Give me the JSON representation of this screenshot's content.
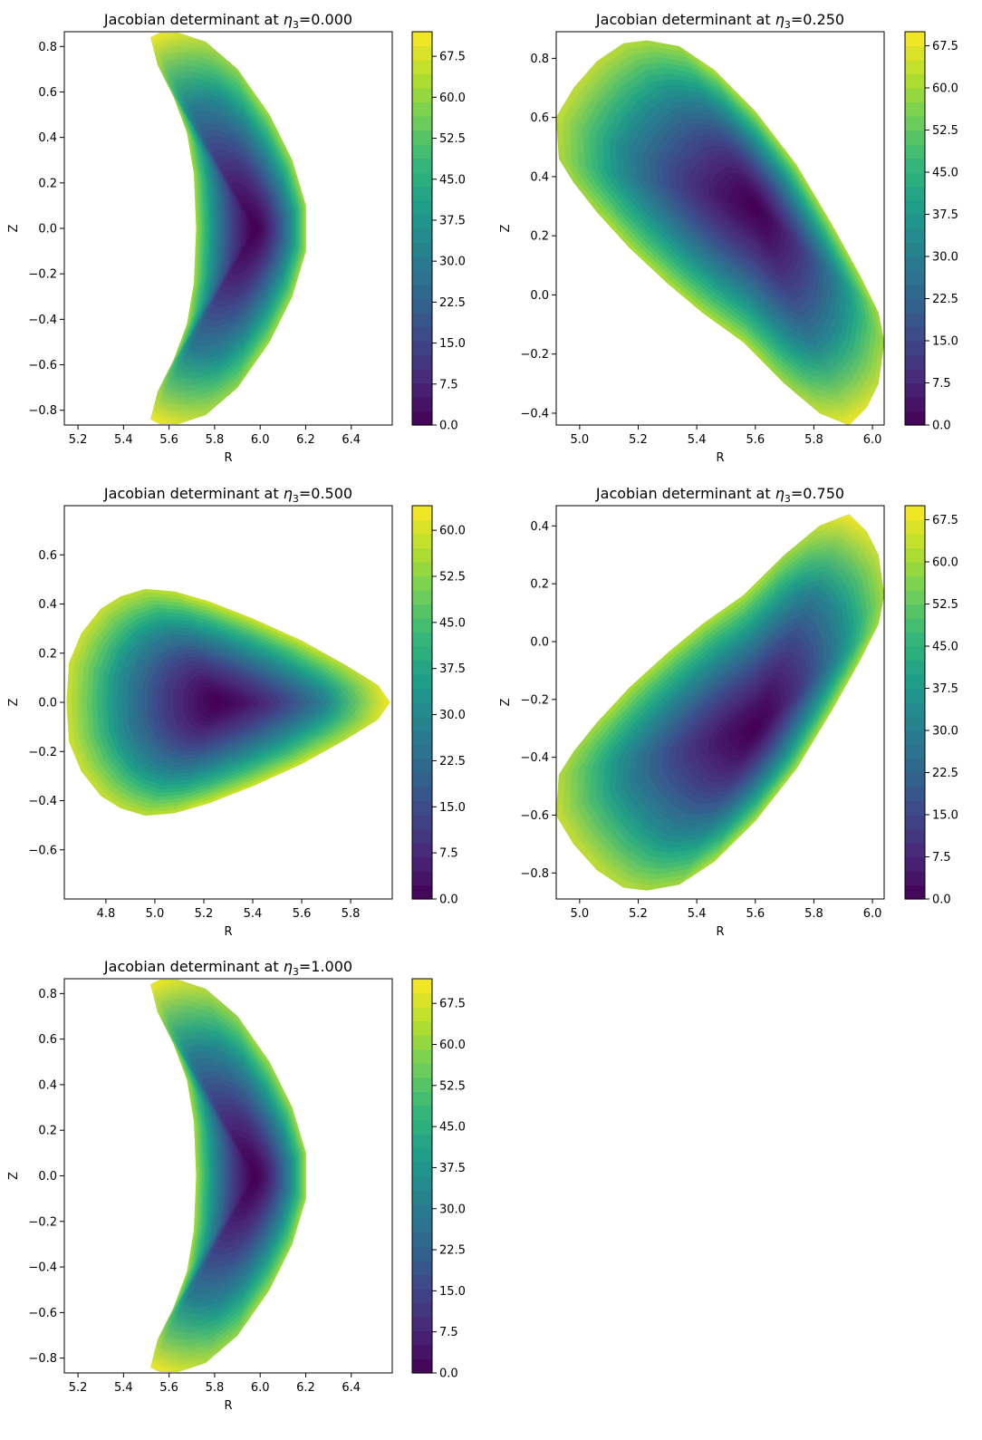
{
  "figure": {
    "colormap": "viridis",
    "panel_background": "#ffffff",
    "axes_color": "#000000"
  },
  "chart_data": [
    {
      "type": "heatmap",
      "subtype": "filled-contour",
      "title_prefix": "Jacobian determinant at ",
      "title_symbol": "η",
      "title_subscript": "3",
      "title_suffix": "=0.000",
      "xlabel": "R",
      "ylabel": "Z",
      "xlim": [
        5.14,
        6.58
      ],
      "ylim": [
        -0.865,
        0.865
      ],
      "xticks": [
        "5.2",
        "5.4",
        "5.6",
        "5.8",
        "6.0",
        "6.2",
        "6.4"
      ],
      "yticks": [
        "0.8",
        "0.6",
        "0.4",
        "0.2",
        "0.0",
        "−0.2",
        "−0.4",
        "−0.6",
        "−0.8"
      ],
      "colorbar": {
        "min": 0,
        "max": 72,
        "ticks": [
          "0.0",
          "7.5",
          "15.0",
          "22.5",
          "30.0",
          "37.5",
          "45.0",
          "52.5",
          "60.0",
          "67.5"
        ]
      },
      "field": {
        "boundary_RZ": [
          [
            5.52,
            0.84
          ],
          [
            5.56,
            0.86
          ],
          [
            5.64,
            0.86
          ],
          [
            5.76,
            0.82
          ],
          [
            5.9,
            0.7
          ],
          [
            6.04,
            0.5
          ],
          [
            6.14,
            0.3
          ],
          [
            6.2,
            0.1
          ],
          [
            6.2,
            -0.1
          ],
          [
            6.14,
            -0.3
          ],
          [
            6.04,
            -0.5
          ],
          [
            5.9,
            -0.7
          ],
          [
            5.76,
            -0.82
          ],
          [
            5.64,
            -0.86
          ],
          [
            5.56,
            -0.86
          ],
          [
            5.52,
            -0.84
          ],
          [
            5.55,
            -0.72
          ],
          [
            5.62,
            -0.58
          ],
          [
            5.68,
            -0.42
          ],
          [
            5.71,
            -0.24
          ],
          [
            5.72,
            0.0
          ],
          [
            5.71,
            0.24
          ],
          [
            5.68,
            0.42
          ],
          [
            5.62,
            0.58
          ],
          [
            5.55,
            0.72
          ]
        ],
        "magnetic_axis_RZ": [
          5.98,
          0.0
        ],
        "axis_value": 0,
        "edge_value_range": [
          45,
          72
        ]
      }
    },
    {
      "type": "heatmap",
      "subtype": "filled-contour",
      "title_prefix": "Jacobian determinant at ",
      "title_symbol": "η",
      "title_subscript": "3",
      "title_suffix": "=0.250",
      "xlabel": "R",
      "ylabel": "Z",
      "xlim": [
        4.92,
        6.04
      ],
      "ylim": [
        -0.44,
        0.89
      ],
      "xticks": [
        "5.0",
        "5.2",
        "5.4",
        "5.6",
        "5.8",
        "6.0"
      ],
      "yticks": [
        "0.8",
        "0.6",
        "0.4",
        "0.2",
        "0.0",
        "−0.2",
        "−0.4"
      ],
      "colorbar": {
        "min": 0,
        "max": 70,
        "ticks": [
          "0.0",
          "7.5",
          "15.0",
          "22.5",
          "30.0",
          "37.5",
          "45.0",
          "52.5",
          "60.0",
          "67.5"
        ]
      },
      "field": {
        "boundary_RZ": [
          [
            4.92,
            0.6
          ],
          [
            4.98,
            0.7
          ],
          [
            5.06,
            0.79
          ],
          [
            5.15,
            0.85
          ],
          [
            5.23,
            0.86
          ],
          [
            5.34,
            0.84
          ],
          [
            5.46,
            0.76
          ],
          [
            5.6,
            0.62
          ],
          [
            5.74,
            0.44
          ],
          [
            5.86,
            0.24
          ],
          [
            5.96,
            0.06
          ],
          [
            6.02,
            -0.06
          ],
          [
            6.04,
            -0.16
          ],
          [
            6.02,
            -0.3
          ],
          [
            5.98,
            -0.38
          ],
          [
            5.92,
            -0.44
          ],
          [
            5.82,
            -0.4
          ],
          [
            5.7,
            -0.3
          ],
          [
            5.56,
            -0.16
          ],
          [
            5.42,
            -0.06
          ],
          [
            5.3,
            0.04
          ],
          [
            5.17,
            0.16
          ],
          [
            5.06,
            0.28
          ],
          [
            4.98,
            0.38
          ],
          [
            4.93,
            0.46
          ]
        ],
        "magnetic_axis_RZ": [
          5.6,
          0.3
        ],
        "axis_value": 0,
        "edge_value_range": [
          45,
          70
        ]
      }
    },
    {
      "type": "heatmap",
      "subtype": "filled-contour",
      "title_prefix": "Jacobian determinant at ",
      "title_symbol": "η",
      "title_subscript": "3",
      "title_suffix": "=0.500",
      "xlabel": "R",
      "ylabel": "Z",
      "xlim": [
        4.63,
        5.97
      ],
      "ylim": [
        -0.8,
        0.8
      ],
      "xticks": [
        "4.8",
        "5.0",
        "5.2",
        "5.4",
        "5.6",
        "5.8"
      ],
      "yticks": [
        "0.6",
        "0.4",
        "0.2",
        "0.0",
        "−0.2",
        "−0.4",
        "−0.6"
      ],
      "colorbar": {
        "min": 0,
        "max": 64,
        "ticks": [
          "0.0",
          "7.5",
          "15.0",
          "22.5",
          "30.0",
          "37.5",
          "45.0",
          "52.5",
          "60.0"
        ]
      },
      "field": {
        "boundary_RZ": [
          [
            4.64,
            0.0
          ],
          [
            4.65,
            0.16
          ],
          [
            4.7,
            0.28
          ],
          [
            4.78,
            0.38
          ],
          [
            4.86,
            0.43
          ],
          [
            4.96,
            0.46
          ],
          [
            5.08,
            0.45
          ],
          [
            5.22,
            0.41
          ],
          [
            5.4,
            0.34
          ],
          [
            5.6,
            0.25
          ],
          [
            5.78,
            0.15
          ],
          [
            5.91,
            0.07
          ],
          [
            5.96,
            0.0
          ],
          [
            5.91,
            -0.07
          ],
          [
            5.78,
            -0.15
          ],
          [
            5.6,
            -0.25
          ],
          [
            5.4,
            -0.34
          ],
          [
            5.22,
            -0.41
          ],
          [
            5.08,
            -0.45
          ],
          [
            4.96,
            -0.46
          ],
          [
            4.86,
            -0.43
          ],
          [
            4.78,
            -0.38
          ],
          [
            4.7,
            -0.28
          ],
          [
            4.65,
            -0.16
          ]
        ],
        "magnetic_axis_RZ": [
          5.26,
          0.0
        ],
        "axis_value": 0,
        "edge_value_range": [
          45,
          64
        ]
      }
    },
    {
      "type": "heatmap",
      "subtype": "filled-contour",
      "title_prefix": "Jacobian determinant at ",
      "title_symbol": "η",
      "title_subscript": "3",
      "title_suffix": "=0.750",
      "xlabel": "R",
      "ylabel": "Z",
      "xlim": [
        4.92,
        6.04
      ],
      "ylim": [
        -0.89,
        0.47
      ],
      "xticks": [
        "5.0",
        "5.2",
        "5.4",
        "5.6",
        "5.8",
        "6.0"
      ],
      "yticks": [
        "0.4",
        "0.2",
        "0.0",
        "−0.2",
        "−0.4",
        "−0.6",
        "−0.8"
      ],
      "colorbar": {
        "min": 0,
        "max": 70,
        "ticks": [
          "0.0",
          "7.5",
          "15.0",
          "22.5",
          "30.0",
          "37.5",
          "45.0",
          "52.5",
          "60.0",
          "67.5"
        ]
      },
      "field": {
        "boundary_RZ": [
          [
            4.92,
            -0.6
          ],
          [
            4.98,
            -0.7
          ],
          [
            5.06,
            -0.79
          ],
          [
            5.15,
            -0.85
          ],
          [
            5.23,
            -0.86
          ],
          [
            5.34,
            -0.84
          ],
          [
            5.46,
            -0.76
          ],
          [
            5.6,
            -0.62
          ],
          [
            5.74,
            -0.44
          ],
          [
            5.86,
            -0.24
          ],
          [
            5.96,
            -0.06
          ],
          [
            6.02,
            0.06
          ],
          [
            6.04,
            0.16
          ],
          [
            6.02,
            0.3
          ],
          [
            5.98,
            0.38
          ],
          [
            5.92,
            0.44
          ],
          [
            5.82,
            0.4
          ],
          [
            5.7,
            0.3
          ],
          [
            5.56,
            0.16
          ],
          [
            5.42,
            0.06
          ],
          [
            5.3,
            -0.04
          ],
          [
            5.17,
            -0.16
          ],
          [
            5.06,
            -0.28
          ],
          [
            4.98,
            -0.38
          ],
          [
            4.93,
            -0.46
          ]
        ],
        "magnetic_axis_RZ": [
          5.6,
          -0.3
        ],
        "axis_value": 0,
        "edge_value_range": [
          45,
          70
        ]
      }
    },
    {
      "type": "heatmap",
      "subtype": "filled-contour",
      "title_prefix": "Jacobian determinant at ",
      "title_symbol": "η",
      "title_subscript": "3",
      "title_suffix": "=1.000",
      "xlabel": "R",
      "ylabel": "Z",
      "xlim": [
        5.14,
        6.58
      ],
      "ylim": [
        -0.865,
        0.865
      ],
      "xticks": [
        "5.2",
        "5.4",
        "5.6",
        "5.8",
        "6.0",
        "6.2",
        "6.4"
      ],
      "yticks": [
        "0.8",
        "0.6",
        "0.4",
        "0.2",
        "0.0",
        "−0.2",
        "−0.4",
        "−0.6",
        "−0.8"
      ],
      "colorbar": {
        "min": 0,
        "max": 72,
        "ticks": [
          "0.0",
          "7.5",
          "15.0",
          "22.5",
          "30.0",
          "37.5",
          "45.0",
          "52.5",
          "60.0",
          "67.5"
        ]
      },
      "field": {
        "boundary_RZ": [
          [
            5.52,
            0.84
          ],
          [
            5.56,
            0.86
          ],
          [
            5.64,
            0.86
          ],
          [
            5.76,
            0.82
          ],
          [
            5.9,
            0.7
          ],
          [
            6.04,
            0.5
          ],
          [
            6.14,
            0.3
          ],
          [
            6.2,
            0.1
          ],
          [
            6.2,
            -0.1
          ],
          [
            6.14,
            -0.3
          ],
          [
            6.04,
            -0.5
          ],
          [
            5.9,
            -0.7
          ],
          [
            5.76,
            -0.82
          ],
          [
            5.64,
            -0.86
          ],
          [
            5.56,
            -0.86
          ],
          [
            5.52,
            -0.84
          ],
          [
            5.55,
            -0.72
          ],
          [
            5.62,
            -0.58
          ],
          [
            5.68,
            -0.42
          ],
          [
            5.71,
            -0.24
          ],
          [
            5.72,
            0.0
          ],
          [
            5.71,
            0.24
          ],
          [
            5.68,
            0.42
          ],
          [
            5.62,
            0.58
          ],
          [
            5.55,
            0.72
          ]
        ],
        "magnetic_axis_RZ": [
          5.98,
          0.0
        ],
        "axis_value": 0,
        "edge_value_range": [
          45,
          72
        ]
      }
    }
  ]
}
